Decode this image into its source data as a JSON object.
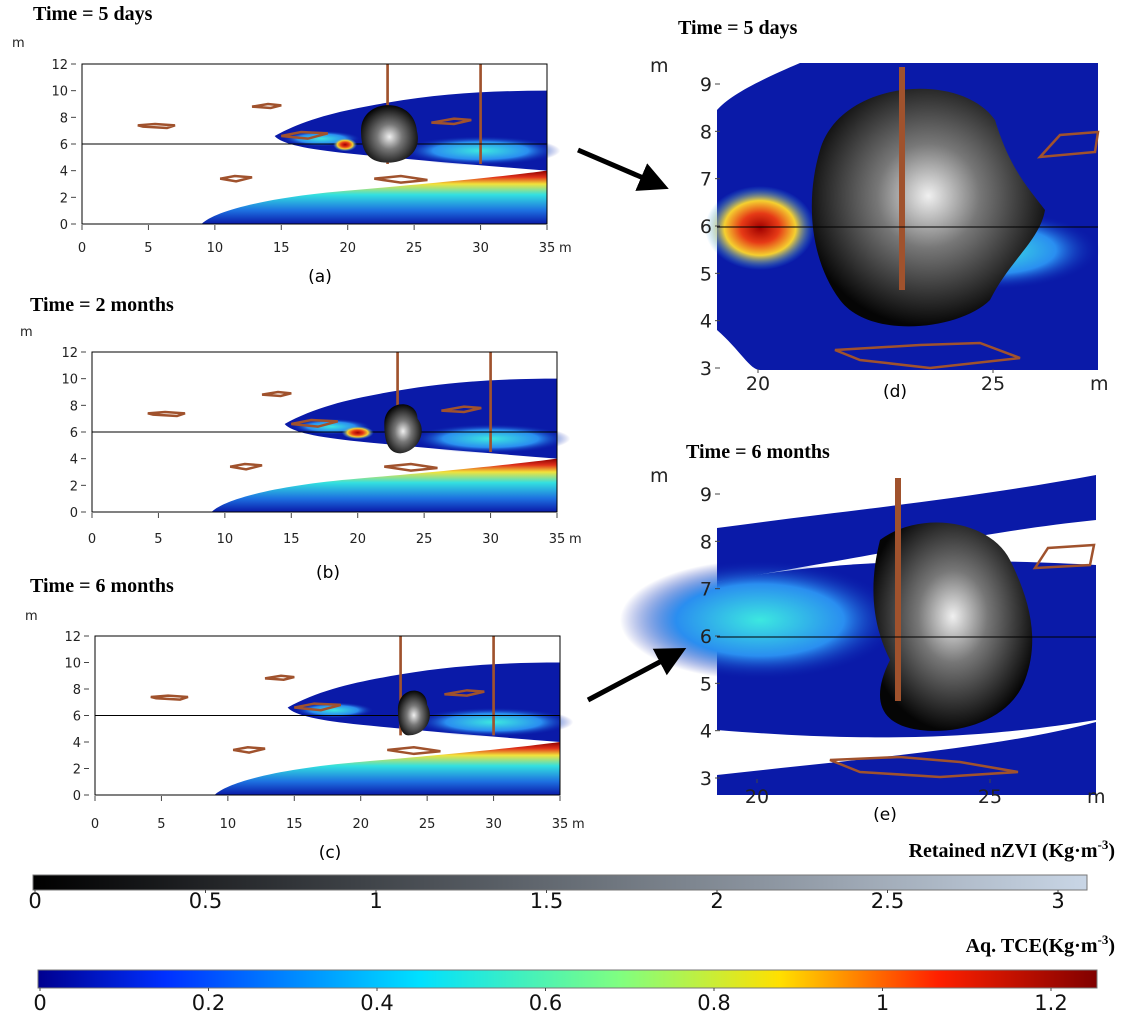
{
  "panels": [
    {
      "title": "Time = 5 days",
      "y_unit": "m",
      "x_unit": "m",
      "label": "(a)",
      "xticks": [
        0,
        5,
        10,
        15,
        20,
        25,
        30,
        35
      ],
      "yticks": [
        0,
        2,
        4,
        6,
        8,
        10,
        12
      ]
    },
    {
      "title": "Time = 2 months",
      "y_unit": "m",
      "x_unit": "m",
      "label": "(b)",
      "xticks": [
        0,
        5,
        10,
        15,
        20,
        25,
        30,
        35
      ],
      "yticks": [
        0,
        2,
        4,
        6,
        8,
        10,
        12
      ]
    },
    {
      "title": "Time = 6 months",
      "y_unit": "m",
      "x_unit": "m",
      "label": "(c)",
      "xticks": [
        0,
        5,
        10,
        15,
        20,
        25,
        30,
        35
      ],
      "yticks": [
        0,
        2,
        4,
        6,
        8,
        10,
        12
      ]
    },
    {
      "title": "Time = 5 days",
      "y_unit": "m",
      "x_unit": "m",
      "label": "(d)",
      "xticks": [
        20,
        25
      ],
      "yticks": [
        3,
        4,
        5,
        6,
        7,
        8,
        9
      ]
    },
    {
      "title": "Time = 6 months",
      "y_unit": "m",
      "x_unit": "m",
      "label": "(e)",
      "xticks": [
        20,
        25
      ],
      "yticks": [
        3,
        4,
        5,
        6,
        7,
        8,
        9
      ]
    }
  ],
  "colorbars": [
    {
      "title": "Retained nZVI (Kg·m",
      "title_sup": "-3",
      "title_end": ")",
      "ticks": [
        0,
        0.5,
        1,
        1.5,
        2,
        2.5,
        3
      ]
    },
    {
      "title": "Aq. TCE(Kg·m",
      "title_sup": "-3",
      "title_end": ")",
      "ticks": [
        0,
        0.2,
        0.4,
        0.6,
        0.8,
        1,
        1.2
      ]
    }
  ]
}
